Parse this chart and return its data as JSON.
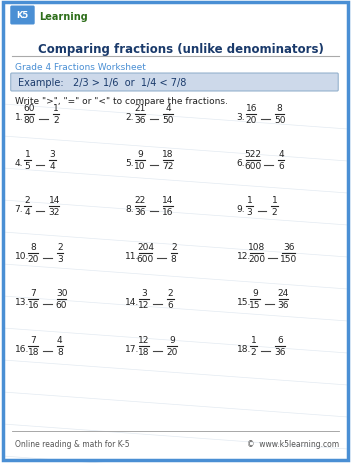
{
  "title": "Comparing fractions (unlike denominators)",
  "subtitle": "Grade 4 Fractions Worksheet",
  "example_text": "Example:   2/3 > 1/6  or  1/4 < 7/8",
  "instruction": "Write \">\", \"=\" or \"<\" to compare the fractions.",
  "problems": [
    {
      "num": 1,
      "n1": "60",
      "d1": "80",
      "n2": "1",
      "d2": "2"
    },
    {
      "num": 2,
      "n1": "21",
      "d1": "36",
      "n2": "4",
      "d2": "50"
    },
    {
      "num": 3,
      "n1": "16",
      "d1": "20",
      "n2": "8",
      "d2": "50"
    },
    {
      "num": 4,
      "n1": "1",
      "d1": "5",
      "n2": "3",
      "d2": "4"
    },
    {
      "num": 5,
      "n1": "9",
      "d1": "10",
      "n2": "18",
      "d2": "72"
    },
    {
      "num": 6,
      "n1": "522",
      "d1": "600",
      "n2": "4",
      "d2": "6"
    },
    {
      "num": 7,
      "n1": "2",
      "d1": "4",
      "n2": "14",
      "d2": "32"
    },
    {
      "num": 8,
      "n1": "22",
      "d1": "36",
      "n2": "14",
      "d2": "16"
    },
    {
      "num": 9,
      "n1": "1",
      "d1": "3",
      "n2": "1",
      "d2": "2"
    },
    {
      "num": 10,
      "n1": "8",
      "d1": "20",
      "n2": "2",
      "d2": "3"
    },
    {
      "num": 11,
      "n1": "204",
      "d1": "600",
      "n2": "2",
      "d2": "8"
    },
    {
      "num": 12,
      "n1": "108",
      "d1": "200",
      "n2": "36",
      "d2": "150"
    },
    {
      "num": 13,
      "n1": "7",
      "d1": "16",
      "n2": "30",
      "d2": "60"
    },
    {
      "num": 14,
      "n1": "3",
      "d1": "12",
      "n2": "2",
      "d2": "6"
    },
    {
      "num": 15,
      "n1": "9",
      "d1": "15",
      "n2": "24",
      "d2": "36"
    },
    {
      "num": 16,
      "n1": "7",
      "d1": "18",
      "n2": "4",
      "d2": "8"
    },
    {
      "num": 17,
      "n1": "12",
      "d1": "18",
      "n2": "9",
      "d2": "20"
    },
    {
      "num": 18,
      "n1": "1",
      "d1": "2",
      "n2": "6",
      "d2": "36"
    }
  ],
  "footer_left": "Online reading & math for K-5",
  "footer_right": "©  www.k5learning.com",
  "border_color": "#4a8fd4",
  "title_color": "#1a3a6b",
  "subtitle_color": "#4a8fd4",
  "example_bg": "#cdd9ea",
  "example_border": "#8aaac8",
  "text_color": "#222222",
  "fraction_color": "#222222",
  "bg_color": "#ffffff",
  "diagonal_color": "#d0dce8",
  "logo_box_color": "#4a8fd4",
  "logo_text_color": "#2d6e1a"
}
